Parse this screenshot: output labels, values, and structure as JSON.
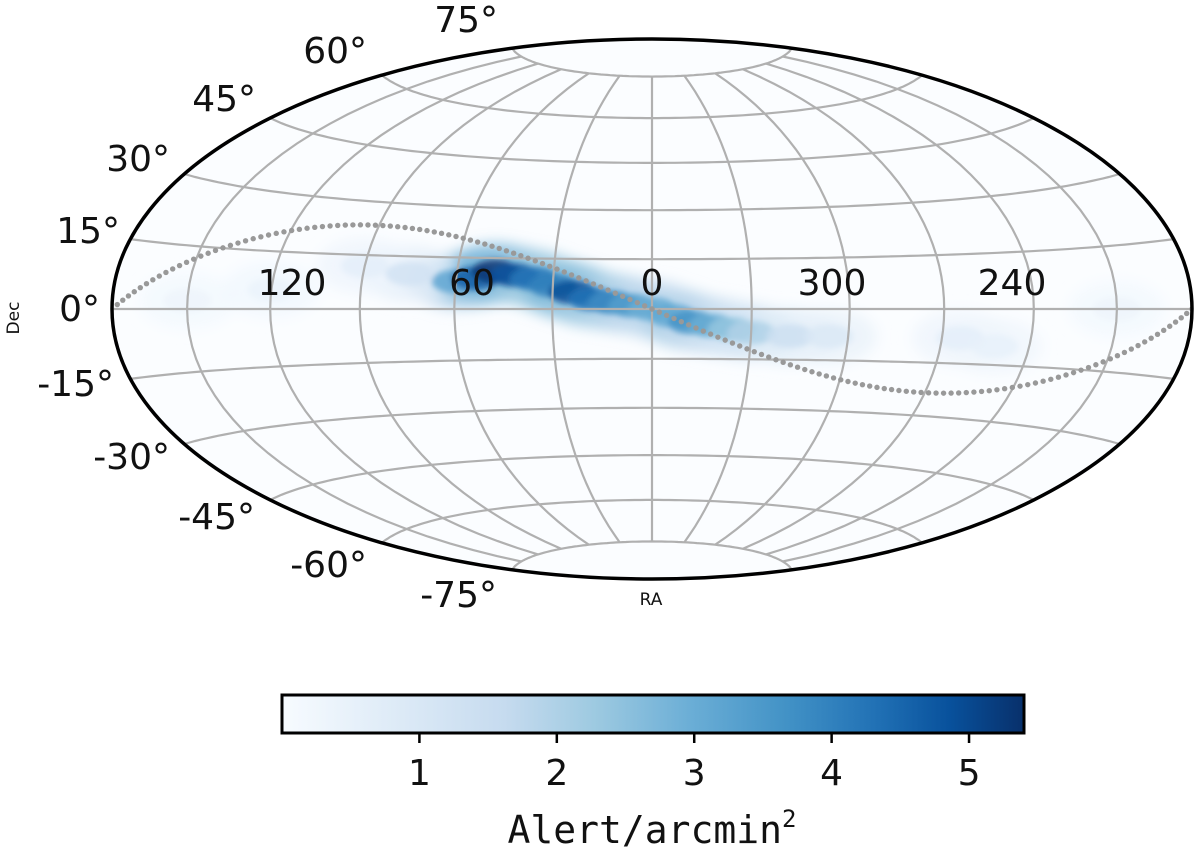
{
  "chart_data": {
    "type": "heatmap",
    "projection": "hammer-aitoff (all-sky)",
    "title": "",
    "xlabel": "RA",
    "ylabel": "Dec",
    "ra_tick_labels": [
      "120",
      "60",
      "0",
      "300",
      "240"
    ],
    "dec_tick_labels": [
      "75°",
      "60°",
      "45°",
      "30°",
      "15°",
      "0°",
      "-15°",
      "-30°",
      "-45°",
      "-60°",
      "-75°"
    ],
    "grid": true,
    "grid_color": "#b0b0b0",
    "colormap": "Blues",
    "colorbar": {
      "label_main": "Alert/arcmin",
      "label_sup": "2",
      "tick_labels": [
        "1",
        "2",
        "3",
        "4",
        "5"
      ],
      "range": [
        0,
        5.4
      ],
      "placement": "bottom"
    },
    "density_points": [
      {
        "ra_offset": 60,
        "dec": 8,
        "value": 3.2
      },
      {
        "ra_offset": 54,
        "dec": 9,
        "value": 4.6
      },
      {
        "ra_offset": 48,
        "dec": 11,
        "value": 5.3
      },
      {
        "ra_offset": 42,
        "dec": 10,
        "value": 4.8
      },
      {
        "ra_offset": 36,
        "dec": 9,
        "value": 4.2
      },
      {
        "ra_offset": 30,
        "dec": 7,
        "value": 4.0
      },
      {
        "ra_offset": 24,
        "dec": 5,
        "value": 4.9
      },
      {
        "ra_offset": 18,
        "dec": 3,
        "value": 4.3
      },
      {
        "ra_offset": 12,
        "dec": 2,
        "value": 3.8
      },
      {
        "ra_offset": 6,
        "dec": 1,
        "value": 3.4
      },
      {
        "ra_offset": 0,
        "dec": 0,
        "value": 3.0
      },
      {
        "ra_offset": -6,
        "dec": -2,
        "value": 3.1
      },
      {
        "ra_offset": -12,
        "dec": -4,
        "value": 3.6
      },
      {
        "ra_offset": -18,
        "dec": -5,
        "value": 3.0
      },
      {
        "ra_offset": -24,
        "dec": -6,
        "value": 2.4
      },
      {
        "ra_offset": -30,
        "dec": -7,
        "value": 2.0
      },
      {
        "ra_offset": -42,
        "dec": -8,
        "value": 1.4
      },
      {
        "ra_offset": -54,
        "dec": -8,
        "value": 0.9
      },
      {
        "ra_offset": -96,
        "dec": -8,
        "value": 0.6
      },
      {
        "ra_offset": -108,
        "dec": -10,
        "value": 0.5
      },
      {
        "ra_offset": 75,
        "dec": 10,
        "value": 1.2
      },
      {
        "ra_offset": 90,
        "dec": 12,
        "value": 0.6
      },
      {
        "ra_offset": 120,
        "dec": 5,
        "value": 0.4
      },
      {
        "ra_offset": 150,
        "dec": 2,
        "value": 0.3
      },
      {
        "ra_offset": -150,
        "dec": 0,
        "value": 0.3
      }
    ],
    "ecliptic_marker_color": "#999999"
  }
}
